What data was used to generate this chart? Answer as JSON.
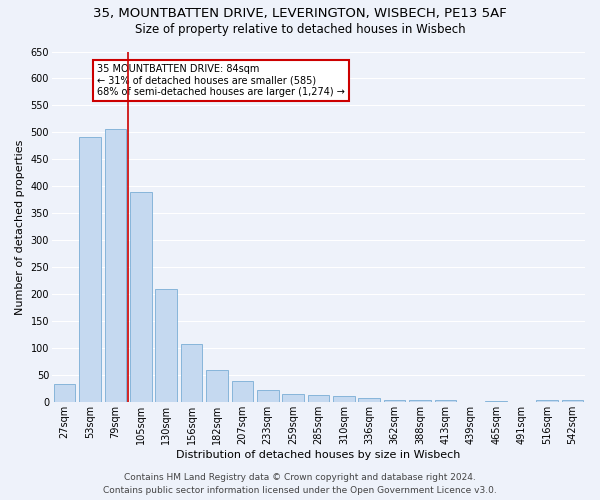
{
  "title1": "35, MOUNTBATTEN DRIVE, LEVERINGTON, WISBECH, PE13 5AF",
  "title2": "Size of property relative to detached houses in Wisbech",
  "xlabel": "Distribution of detached houses by size in Wisbech",
  "ylabel": "Number of detached properties",
  "categories": [
    "27sqm",
    "53sqm",
    "79sqm",
    "105sqm",
    "130sqm",
    "156sqm",
    "182sqm",
    "207sqm",
    "233sqm",
    "259sqm",
    "285sqm",
    "310sqm",
    "336sqm",
    "362sqm",
    "388sqm",
    "413sqm",
    "439sqm",
    "465sqm",
    "491sqm",
    "516sqm",
    "542sqm"
  ],
  "values": [
    33,
    492,
    506,
    390,
    210,
    108,
    60,
    40,
    22,
    15,
    13,
    12,
    8,
    5,
    5,
    4,
    0,
    3,
    0,
    5,
    5
  ],
  "bar_color": "#c5d9f0",
  "bar_edge_color": "#7aaed6",
  "background_color": "#eef2fa",
  "grid_color": "#ffffff",
  "vline_color": "#cc0000",
  "annotation_lines": [
    "35 MOUNTBATTEN DRIVE: 84sqm",
    "← 31% of detached houses are smaller (585)",
    "68% of semi-detached houses are larger (1,274) →"
  ],
  "annotation_box_color": "#ffffff",
  "annotation_box_edge": "#cc0000",
  "ylim": [
    0,
    650
  ],
  "yticks": [
    0,
    50,
    100,
    150,
    200,
    250,
    300,
    350,
    400,
    450,
    500,
    550,
    600,
    650
  ],
  "footer1": "Contains HM Land Registry data © Crown copyright and database right 2024.",
  "footer2": "Contains public sector information licensed under the Open Government Licence v3.0.",
  "title1_fontsize": 9.5,
  "title2_fontsize": 8.5,
  "xlabel_fontsize": 8,
  "ylabel_fontsize": 8,
  "tick_fontsize": 7,
  "annotation_fontsize": 7,
  "footer_fontsize": 6.5
}
